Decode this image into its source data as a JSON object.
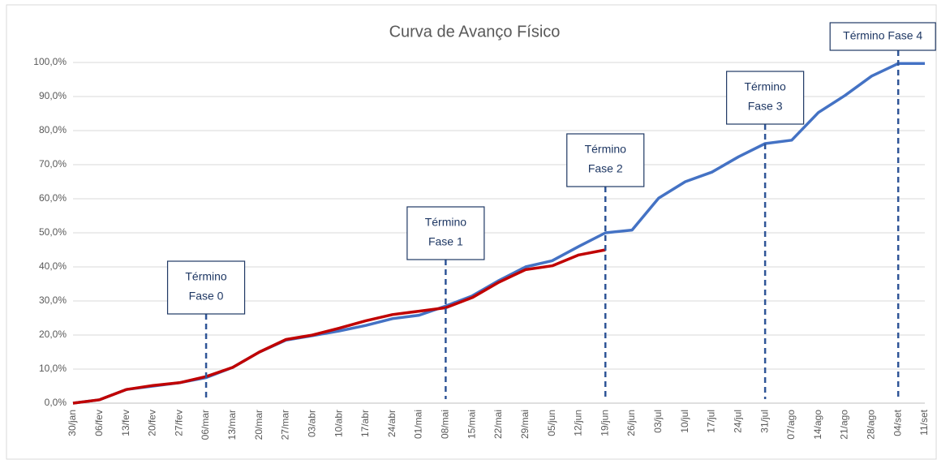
{
  "chart_data": {
    "type": "line",
    "title": "Curva de Avanço Físico",
    "categories": [
      "30/jan",
      "06/fev",
      "13/fev",
      "20/fev",
      "27/fev",
      "06/mar",
      "13/mar",
      "20/mar",
      "27/mar",
      "03/abr",
      "10/abr",
      "17/abr",
      "24/abr",
      "01/mai",
      "08/mai",
      "15/mai",
      "22/mai",
      "29/mai",
      "05/jun",
      "12/jun",
      "19/jun",
      "26/jun",
      "03/jul",
      "10/jul",
      "17/jul",
      "24/jul",
      "31/jul",
      "07/ago",
      "14/ago",
      "21/ago",
      "28/ago",
      "04/set",
      "11/set"
    ],
    "series": [
      {
        "color": "#4472c4",
        "values": [
          0,
          1,
          4,
          5,
          6,
          7.5,
          10.5,
          15,
          18.5,
          19.8,
          21.2,
          22.8,
          24.8,
          25.8,
          28.5,
          31.5,
          36,
          40,
          41.8,
          46,
          50,
          50.8,
          60.2,
          65,
          67.8,
          72.3,
          76.2,
          77.2,
          85.3,
          90.3,
          96,
          99.7,
          99.7
        ]
      },
      {
        "color": "#c00000",
        "values": [
          0,
          1,
          4,
          5.2,
          6,
          7.8,
          10.5,
          15,
          18.7,
          20,
          22,
          24.2,
          26,
          27,
          28,
          31,
          35.5,
          39.2,
          40.3,
          43.5,
          45,
          null,
          null,
          null,
          null,
          null,
          null,
          null,
          null,
          null,
          null,
          null,
          null
        ]
      }
    ],
    "ylim": [
      0,
      100
    ],
    "yticks": [
      {
        "value": 0,
        "label": "0,0%"
      },
      {
        "value": 10,
        "label": "10,0%"
      },
      {
        "value": 20,
        "label": "20,0%"
      },
      {
        "value": 30,
        "label": "30,0%"
      },
      {
        "value": 40,
        "label": "40,0%"
      },
      {
        "value": 50,
        "label": "50,0%"
      },
      {
        "value": 60,
        "label": "60,0%"
      },
      {
        "value": 70,
        "label": "70,0%"
      },
      {
        "value": 80,
        "label": "80,0%"
      },
      {
        "value": 90,
        "label": "90,0%"
      },
      {
        "value": 100,
        "label": "100,0%"
      }
    ],
    "grid": true,
    "annotations": [
      {
        "x": "06/mar",
        "lines": [
          "Término",
          "Fase 0"
        ]
      },
      {
        "x": "08/mai",
        "lines": [
          "Término",
          "Fase 1"
        ]
      },
      {
        "x": "19/jun",
        "lines": [
          "Término",
          "Fase 2"
        ]
      },
      {
        "x": "31/jul",
        "lines": [
          "Término",
          "Fase 3"
        ]
      },
      {
        "x": "04/set",
        "lines": [
          "Término Fase 4"
        ]
      }
    ]
  }
}
